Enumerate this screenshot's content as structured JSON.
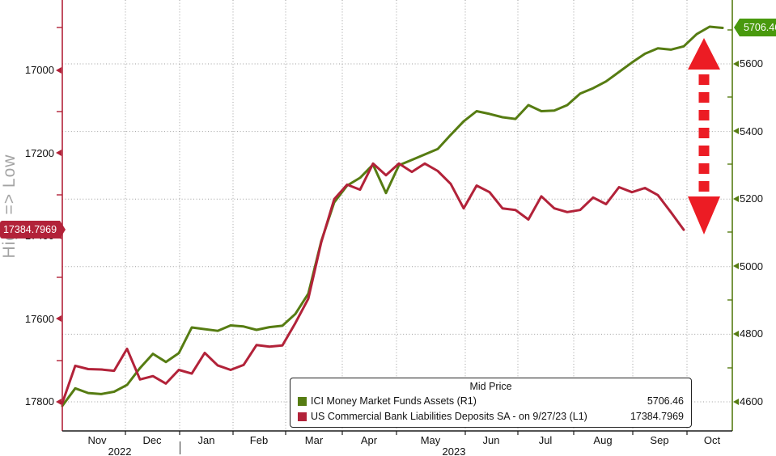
{
  "left_axis": {
    "orientation_label": "High => Low",
    "ticks": [
      17000,
      17200,
      17400,
      17600,
      17800
    ],
    "badge_value": "17384.7969",
    "color": "#b22239"
  },
  "right_axis": {
    "ticks": [
      5600,
      5400,
      5200,
      5000,
      4800,
      4600
    ],
    "badge_value": "5706.46",
    "color": "#567c12",
    "badge_color": "#48990d"
  },
  "x_axis": {
    "months": [
      "Nov",
      "Dec",
      "Jan",
      "Feb",
      "Mar",
      "Apr",
      "May",
      "Jun",
      "Jul",
      "Aug",
      "Sep",
      "Oct"
    ],
    "years": [
      "2022",
      "2023"
    ]
  },
  "legend": {
    "title": "Mid Price",
    "rows": [
      {
        "label": "ICI Money Market Funds Assets  (R1)",
        "value": "5706.46",
        "color": "#567c12"
      },
      {
        "label": "US Commercial Bank Liabilities Deposits SA -  on 9/27/23  (L1)",
        "value": "17384.7969",
        "color": "#b22239"
      }
    ]
  },
  "annotations": {
    "divergence_arrow_color": "#ec1c24"
  },
  "colors": {
    "mmf_green": "#567c12",
    "deposits_crimson": "#b22239",
    "grid_gray": "#9e9e9e",
    "bottom_axis_black": "#1a1a1a"
  },
  "chart_data": {
    "type": "line",
    "x_unit": "weekly, Oct 2022 - Oct 2023",
    "x_categories_months": [
      "Nov 2022",
      "Dec 2022",
      "Jan 2023",
      "Feb 2023",
      "Mar 2023",
      "Apr 2023",
      "May 2023",
      "Jun 2023",
      "Jul 2023",
      "Aug 2023",
      "Sep 2023",
      "Oct 2023"
    ],
    "left_axis": {
      "label": "High => Low",
      "inverted": true,
      "ticks": [
        17000,
        17200,
        17400,
        17600,
        17800
      ],
      "last_value_marker": 17384.7969
    },
    "right_axis": {
      "ticks": [
        5600,
        5400,
        5200,
        5000,
        4800,
        4600
      ],
      "last_value_marker": 5706.46
    },
    "grid": "dotted",
    "legend_position": "bottom-center",
    "series": [
      {
        "name": "ICI Money Market Funds Assets",
        "axis": "R1",
        "color": "#567c12",
        "values": [
          4588,
          4640,
          4626,
          4623,
          4630,
          4650,
          4700,
          4742,
          4718,
          4744,
          4820,
          4815,
          4810,
          4826,
          4823,
          4813,
          4821,
          4825,
          4860,
          4920,
          5075,
          5190,
          5240,
          5263,
          5302,
          5218,
          5300,
          5316,
          5332,
          5348,
          5390,
          5430,
          5460,
          5452,
          5442,
          5437,
          5478,
          5460,
          5462,
          5478,
          5512,
          5528,
          5548,
          5576,
          5604,
          5630,
          5646,
          5642,
          5652,
          5688,
          5710,
          5706.46
        ]
      },
      {
        "name": "US Commercial Bank Liabilities Deposits SA",
        "axis": "L1",
        "color": "#b22239",
        "values": [
          17803,
          17713,
          17721,
          17722,
          17725,
          17672,
          17746,
          17738,
          17756,
          17723,
          17732,
          17682,
          17712,
          17723,
          17711,
          17663,
          17667,
          17664,
          17610,
          17551,
          17415,
          17311,
          17276,
          17288,
          17225,
          17253,
          17225,
          17245,
          17225,
          17243,
          17274,
          17333,
          17278,
          17294,
          17333,
          17337,
          17360,
          17304,
          17333,
          17342,
          17337,
          17307,
          17323,
          17282,
          17294,
          17284,
          17301,
          17342,
          17384.7969
        ]
      }
    ]
  }
}
